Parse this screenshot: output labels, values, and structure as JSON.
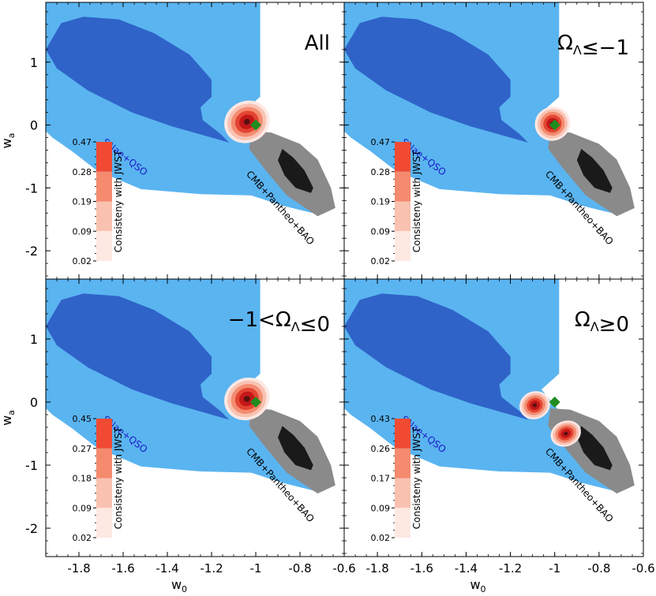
{
  "chart_data": {
    "type": "contour",
    "axes": {
      "xlabel": "w",
      "xlabel_sub": "0",
      "ylabel": "w",
      "ylabel_sub": "a",
      "xlim": [
        -1.95,
        -0.6
      ],
      "ylim": [
        -2.45,
        1.95
      ],
      "x_ticks": [
        -1.8,
        -1.6,
        -1.4,
        -1.2,
        -1.0,
        -0.8,
        -0.6
      ],
      "x_tick_labels": [
        "-1.8",
        "-1.6",
        "-1.4",
        "-1.2",
        "-1",
        "-0.8",
        "-0.6"
      ],
      "y_ticks": [
        1,
        0,
        -1,
        -2
      ],
      "y_tick_labels": [
        "1",
        "0",
        "-1",
        "-2"
      ]
    },
    "contour_labels": {
      "snae": "SNae+QSO",
      "cmb": "CMB+Pantheo+BAO"
    },
    "marker": {
      "label": "reference point",
      "w0": -1.0,
      "wa": 0.0,
      "color": "#1e8c1e"
    },
    "colors": {
      "outer_blue": "#5ab4f0",
      "inner_blue": "#2f63c8",
      "grey": "#8a8a8a",
      "black": "#1a1a1a",
      "red_levels": [
        "#fde8e4",
        "#f9c2b2",
        "#f38c70",
        "#e34532",
        "#c41818",
        "#5a1010"
      ]
    },
    "panels": [
      {
        "title": "All",
        "colorbar_label": "Consisteny with JWST",
        "colorbar_ticks": [
          "0.47",
          "0.28",
          "0.19",
          "0.09",
          "0.02"
        ],
        "show_y_labels": true,
        "show_x_labels": false,
        "blobs": [
          {
            "w0": -1.04,
            "wa": 0.05,
            "rx": 0.105,
            "ry": 0.33,
            "rot": -28
          }
        ]
      },
      {
        "title": "Ω_Λ≤−1",
        "colorbar_label": "Consisteny with JWST",
        "colorbar_ticks": [
          "0.47",
          "0.28",
          "0.19",
          "0.09",
          "0.02"
        ],
        "show_y_labels": false,
        "show_x_labels": false,
        "blobs": [
          {
            "w0": -1.01,
            "wa": 0.02,
            "rx": 0.08,
            "ry": 0.27,
            "rot": -24
          }
        ]
      },
      {
        "title": "−1<Ω_Λ≤0",
        "colorbar_label": "Consisteny with JWST",
        "colorbar_ticks": [
          "0.45",
          "0.27",
          "0.18",
          "0.09",
          "0.02"
        ],
        "show_y_labels": true,
        "show_x_labels": true,
        "blobs": [
          {
            "w0": -1.04,
            "wa": 0.05,
            "rx": 0.105,
            "ry": 0.33,
            "rot": -28
          }
        ]
      },
      {
        "title": "Ω_Λ≥0",
        "colorbar_label": "Consisteny with JWST",
        "colorbar_ticks": [
          "0.43",
          "0.26",
          "0.17",
          "0.09",
          "0.02"
        ],
        "show_y_labels": false,
        "show_x_labels": true,
        "blobs": [
          {
            "w0": -1.09,
            "wa": -0.05,
            "rx": 0.07,
            "ry": 0.22,
            "rot": -22
          },
          {
            "w0": -0.95,
            "wa": -0.5,
            "rx": 0.07,
            "ry": 0.2,
            "rot": -22
          }
        ]
      }
    ]
  }
}
